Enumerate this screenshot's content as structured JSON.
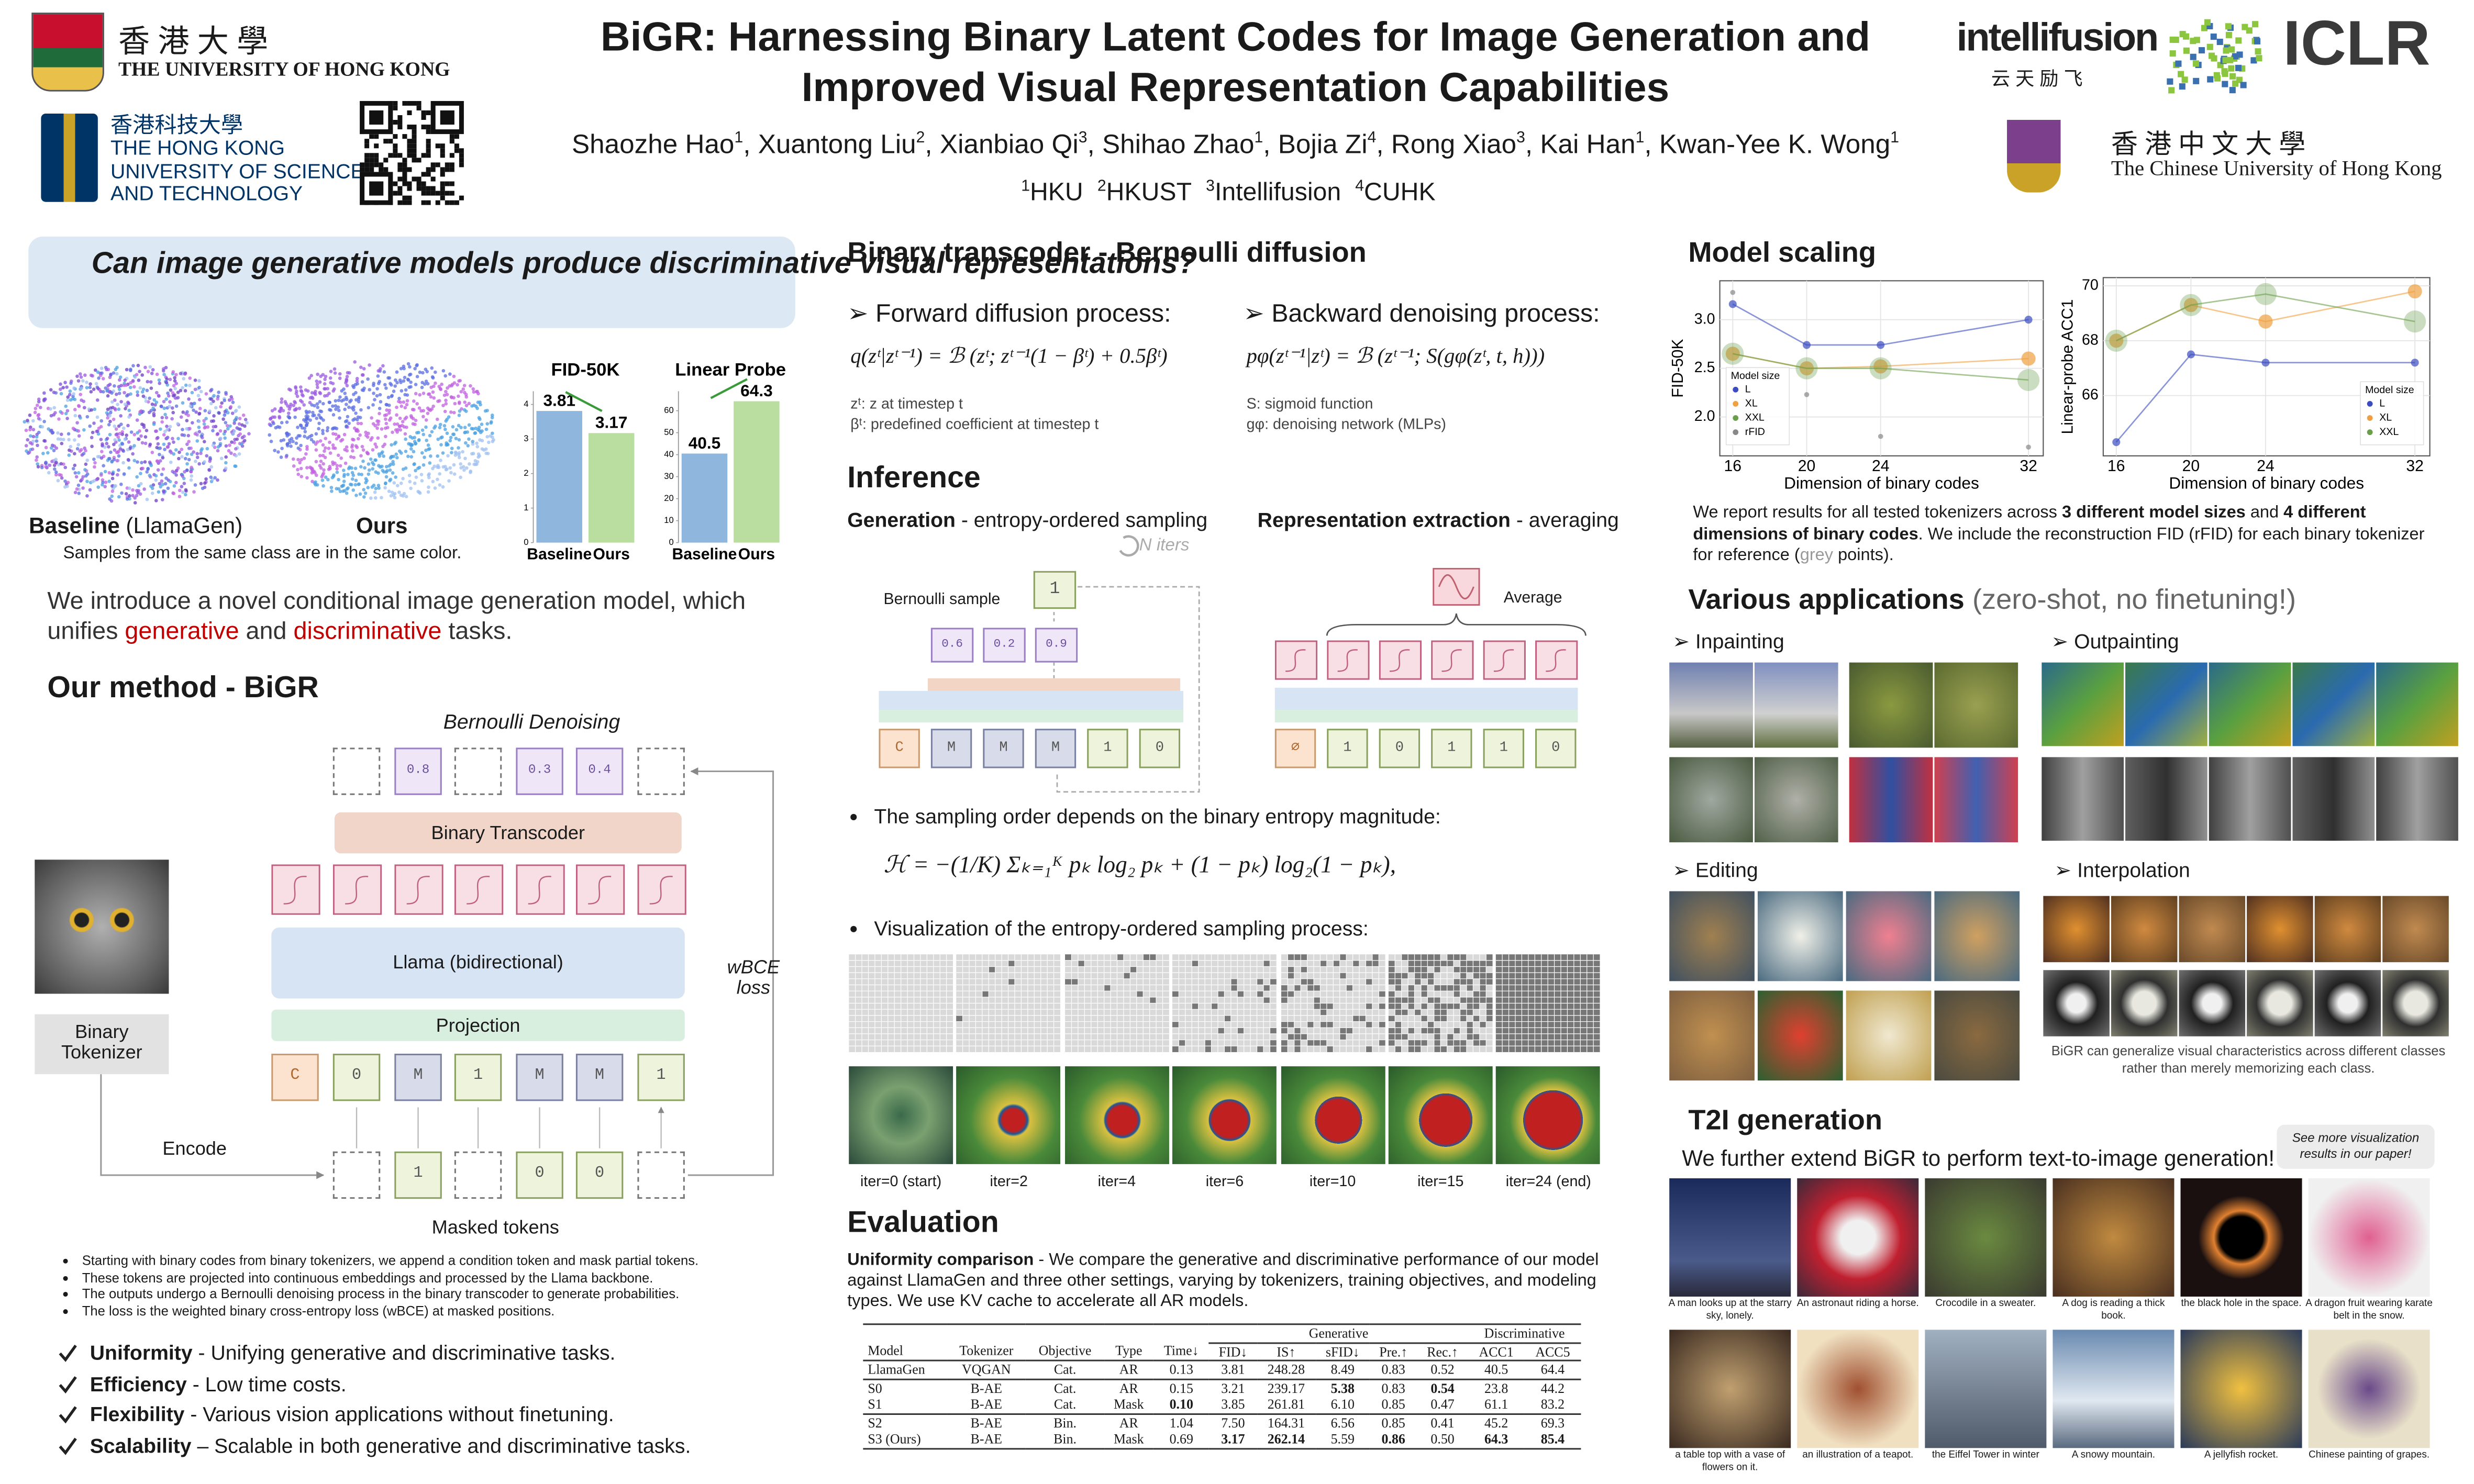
{
  "header": {
    "title_lines": [
      "BiGR: Harnessing Binary Latent Codes for Image Generation and",
      "Improved Visual Representation Capabilities"
    ],
    "authors": [
      {
        "name": "Shaozhe Hao",
        "sup": "1"
      },
      {
        "name": "Xuantong Liu",
        "sup": "2"
      },
      {
        "name": "Xianbiao Qi",
        "sup": "3"
      },
      {
        "name": "Shihao Zhao",
        "sup": "1"
      },
      {
        "name": "Bojia Zi",
        "sup": "4"
      },
      {
        "name": "Rong Xiao",
        "sup": "3"
      },
      {
        "name": "Kai Han",
        "sup": "1"
      },
      {
        "name": "Kwan-Yee K. Wong",
        "sup": "1"
      }
    ],
    "separator": ", ",
    "affiliations": [
      {
        "sup": "1",
        "name": "HKU"
      },
      {
        "sup": "2",
        "name": "HKUST"
      },
      {
        "sup": "3",
        "name": "Intellifusion"
      },
      {
        "sup": "4",
        "name": "CUHK"
      }
    ]
  },
  "logos": {
    "hku_cn": "香 港 大 學",
    "hku_en": "THE UNIVERSITY OF HONG KONG",
    "hkust_cn": "香港科技大學",
    "hkust_en": [
      "THE HONG KONG",
      "UNIVERSITY OF SCIENCE",
      "AND TECHNOLOGY"
    ],
    "intellifusion": "intellifusion",
    "intellifusion_cn": "云 天 励 飞",
    "iclr": "ICLR",
    "cuhk_cn": "香 港 中 文 大 學",
    "cuhk_en": "The Chinese University of Hong Kong"
  },
  "intro": {
    "question": "Can image generative models produce discriminative visual representations?",
    "baseline_label": "Baseline",
    "baseline_note": " (LlamaGen)",
    "ours_label": "Ours",
    "caption": "Samples from the same class are in the same color.",
    "statement": [
      {
        "text": "We introduce a novel conditional image generation model, which unifies "
      },
      {
        "text": "generative",
        "color": "#c00000"
      },
      {
        "text": " and "
      },
      {
        "text": "discriminative",
        "color": "#c00000"
      },
      {
        "text": " tasks."
      }
    ]
  },
  "chart_data": [
    {
      "type": "bar",
      "title": "FID-50K",
      "categories": [
        "Baseline",
        "Ours"
      ],
      "values": [
        3.81,
        3.17
      ],
      "colors": [
        "#8fb6dc",
        "#b9dea0"
      ],
      "ylim": [
        0,
        4.2
      ],
      "yticks": [
        0,
        1,
        2,
        3,
        4
      ]
    },
    {
      "type": "bar",
      "title": "Linear Probe",
      "categories": [
        "Baseline",
        "Ours"
      ],
      "values": [
        40.5,
        64.3
      ],
      "colors": [
        "#8fb6dc",
        "#b9dea0"
      ],
      "ylim": [
        0,
        66
      ],
      "yticks": [
        0,
        10,
        20,
        30,
        40,
        50,
        60
      ]
    },
    {
      "type": "line",
      "x": [
        16,
        20,
        24,
        32
      ],
      "xlim": [
        15.3,
        32.8
      ],
      "xticks": [
        16,
        20,
        24,
        32
      ],
      "ylim": [
        1.6,
        3.4
      ],
      "yticks": [
        {
          "value": 2,
          "label": "2.0"
        },
        {
          "value": 2.5,
          "label": "2.5"
        },
        {
          "value": 3,
          "label": "3.0"
        }
      ],
      "xlabel": "Dimension of binary codes",
      "ylabel": "FID-50K",
      "grid": true,
      "legend_title": "Model size",
      "legend": "lower left",
      "series": [
        {
          "name": "L",
          "color": "#3b4cc0",
          "values": [
            3.16,
            2.74,
            2.74,
            3.0
          ]
        },
        {
          "name": "XL",
          "color": "#f0a040",
          "values": [
            2.65,
            2.5,
            2.52,
            2.6
          ]
        },
        {
          "name": "XXL",
          "color": "#6b9e4a",
          "values": [
            2.65,
            2.5,
            2.5,
            2.38
          ]
        },
        {
          "name": "rFID",
          "color": "#888888",
          "line": false,
          "values": [
            3.28,
            2.23,
            1.8,
            1.69
          ]
        }
      ]
    },
    {
      "type": "line",
      "x": [
        16,
        20,
        24,
        32
      ],
      "xlim": [
        15.3,
        32.8
      ],
      "xticks": [
        16,
        20,
        24,
        32
      ],
      "ylim": [
        63.8,
        70.3
      ],
      "yticks": [
        66,
        68,
        70
      ],
      "xlabel": "Dimension of binary codes",
      "ylabel": "Linear-probe ACC1",
      "grid": true,
      "legend_title": "Model size",
      "legend": "lower right",
      "series": [
        {
          "name": "L",
          "color": "#3b4cc0",
          "values": [
            64.3,
            67.5,
            67.2,
            67.2
          ]
        },
        {
          "name": "XL",
          "color": "#f0a040",
          "values": [
            68.0,
            69.3,
            68.7,
            69.8
          ]
        },
        {
          "name": "XXL",
          "color": "#6b9e4a",
          "values": [
            68.0,
            69.3,
            69.7,
            68.7
          ]
        }
      ]
    }
  ],
  "method": {
    "heading": "Our method - BiGR",
    "denoise_title": "Bernoulli Denoising",
    "top_tokens": [
      null,
      0.8,
      null,
      0.3,
      0.4,
      null
    ],
    "transcoder": "Binary Transcoder",
    "backbone": "Llama (bidirectional)",
    "projection": "Projection",
    "input_tokens": [
      "C",
      0,
      "M",
      1,
      "M",
      "M",
      1
    ],
    "masked_tokens": [
      null,
      1,
      null,
      0,
      0,
      null
    ],
    "masked_label": "Masked tokens",
    "tokenizer": "Binary Tokenizer",
    "encode": "Encode",
    "loss": "wBCE loss",
    "notes": [
      "Starting with binary codes from binary tokenizers, we append a condition token and mask partial tokens.",
      "These tokens are projected into continuous embeddings and processed by the Llama backbone.",
      "The outputs undergo a Bernoulli denoising process in the binary transcoder to generate probabilities.",
      "The loss is the weighted binary cross-entropy loss (wBCE) at masked positions."
    ],
    "highlights": [
      {
        "title": "Uniformity",
        "text": " - Unifying generative and discriminative tasks."
      },
      {
        "title": "Efficiency",
        "text": " - Low time costs."
      },
      {
        "title": "Flexibility",
        "text": " - Various vision applications without finetuning."
      },
      {
        "title": "Scalability",
        "text": " – Scalable in both generative and discriminative tasks."
      }
    ]
  },
  "transcoder": {
    "heading": "Binary transcoder - Bernoulli diffusion",
    "forward": {
      "label": "➢ Forward diffusion process:",
      "formula": "q(zᵗ|zᵗ⁻¹) = ℬ (zᵗ; zᵗ⁻¹(1 − βᵗ) + 0.5βᵗ)",
      "notes": [
        "zᵗ: z at timestep t",
        "βᵗ: predefined coefficient at timestep t"
      ]
    },
    "backward": {
      "label": "➢ Backward denoising process:",
      "formula": "pφ(zᵗ⁻¹|zᵗ) = ℬ (zᵗ⁻¹; S(gφ(zᵗ, t, h)))",
      "notes": [
        "S: sigmoid function",
        "gφ: denoising network (MLPs)"
      ]
    }
  },
  "inference": {
    "heading": "Inference",
    "generation": {
      "label": "Generation",
      "text": " - entropy-ordered sampling"
    },
    "representation": {
      "label": "Representation extraction",
      "text": " - averaging"
    },
    "iters": "N iters",
    "bernoulli_sample": "Bernoulli sample",
    "sample_token": 1,
    "probs": [
      0.6,
      0.2,
      0.9
    ],
    "gen_tokens": [
      "C",
      "M",
      "M",
      "M",
      1,
      0
    ],
    "average": "Average",
    "rep_tokens": [
      "∅",
      1,
      0,
      1,
      1,
      0
    ],
    "bullets": [
      "The sampling order depends on the binary entropy magnitude:",
      "Visualization of the entropy-ordered sampling process:"
    ],
    "entropy_formula": "ℋ = −(1/K) Σₖ₌₁ᴷ pₖ log₂ pₖ + (1 − pₖ) log₂(1 − pₖ),",
    "iter_labels": [
      "iter=0 (start)",
      "iter=2",
      "iter=4",
      "iter=6",
      "iter=10",
      "iter=15",
      "iter=24 (end)"
    ]
  },
  "evaluation": {
    "heading": "Evaluation",
    "lead": "Uniformity comparison",
    "text": " - We compare the generative and discriminative performance of our model against LlamaGen and three other settings, varying by tokenizers, training objectives, and modeling types. We use KV cache to accelerate all AR models.",
    "table": {
      "groups": [
        {
          "label": "Generative",
          "from": 5,
          "to": 9
        },
        {
          "label": "Discriminative",
          "from": 10,
          "to": 11
        }
      ],
      "columns": [
        "Model",
        "Tokenizer",
        "Objective",
        "Type",
        "Time↓",
        "FID↓",
        "IS↑",
        "sFID↓",
        "Pre.↑",
        "Rec.↑",
        "ACC1",
        "ACC5"
      ],
      "rows": [
        [
          "LlamaGen",
          "VQGAN",
          "Cat.",
          "AR",
          "0.13",
          "3.81",
          "248.28",
          "8.49",
          "0.83",
          "0.52",
          "40.5",
          "64.4"
        ],
        [
          "S0",
          "B-AE",
          "Cat.",
          "AR",
          "0.15",
          "3.21",
          "239.17",
          "5.38",
          "0.83",
          "0.54",
          "23.8",
          "44.2"
        ],
        [
          "S1",
          "B-AE",
          "Cat.",
          "Mask",
          "0.10",
          "3.85",
          "261.81",
          "6.10",
          "0.85",
          "0.47",
          "61.1",
          "83.2"
        ],
        [
          "S2",
          "B-AE",
          "Bin.",
          "AR",
          "1.04",
          "7.50",
          "164.31",
          "6.56",
          "0.85",
          "0.41",
          "45.2",
          "69.3"
        ],
        [
          "S3 (Ours)",
          "B-AE",
          "Bin.",
          "Mask",
          "0.69",
          "3.17",
          "262.14",
          "5.59",
          "0.86",
          "0.50",
          "64.3",
          "85.4"
        ]
      ],
      "bold": [
        [
          1,
          7
        ],
        [
          1,
          9
        ],
        [
          2,
          4
        ],
        [
          4,
          5
        ],
        [
          4,
          6
        ],
        [
          4,
          8
        ],
        [
          4,
          10
        ],
        [
          4,
          11
        ]
      ],
      "rules_after": [
        0,
        2
      ]
    }
  },
  "scaling": {
    "heading": "Model scaling",
    "text": [
      {
        "text": "We report results for all tested tokenizers across "
      },
      {
        "text": "3 different model sizes",
        "bold": true
      },
      {
        "text": " and "
      },
      {
        "text": "4 different dimensions of binary codes",
        "bold": true
      },
      {
        "text": ". We include the reconstruction FID (rFID) for each binary tokenizer for reference ("
      },
      {
        "text": "grey",
        "color": "#999999"
      },
      {
        "text": " points)."
      }
    ]
  },
  "applications": {
    "heading": "Various applications",
    "note": " (zero-shot, no finetuning!)",
    "inpainting": "➢ Inpainting",
    "outpainting": "➢ Outpainting",
    "editing": "➢ Editing",
    "interpolation": "➢ Interpolation",
    "caption": "BiGR can generalize visual characteristics across different classes rather than merely memorizing each class."
  },
  "t2i": {
    "heading": "T2I generation",
    "text": "We further extend BiGR to perform text-to-image generation!",
    "note": "See more visualization results in our paper!",
    "captions": [
      "A man looks up at the starry sky, lonely.",
      "An astronaut riding a horse.",
      "Crocodile in a sweater.",
      "A dog is reading a thick book.",
      "the black hole in the space.",
      "A dragon fruit wearing karate belt in the snow.",
      "a table top with a vase of flowers on it.",
      "an illustration of a teapot.",
      "the Eiffel Tower in winter",
      "A snowy mountain.",
      "A jellyfish rocket.",
      "Chinese painting of grapes."
    ]
  }
}
